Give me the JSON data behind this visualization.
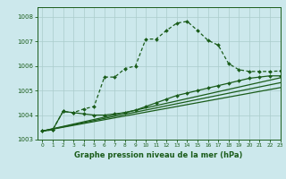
{
  "background_color": "#cce8ec",
  "grid_color": "#aacccc",
  "line_color": "#1a5c1a",
  "xlabel": "Graphe pression niveau de la mer (hPa)",
  "ylim": [
    1003,
    1008.4
  ],
  "xlim": [
    -0.5,
    23
  ],
  "yticks": [
    1003,
    1004,
    1005,
    1006,
    1007,
    1008
  ],
  "xticks": [
    0,
    1,
    2,
    3,
    4,
    5,
    6,
    7,
    8,
    9,
    10,
    11,
    12,
    13,
    14,
    15,
    16,
    17,
    18,
    19,
    20,
    21,
    22,
    23
  ],
  "line1_x": [
    0,
    1,
    2,
    3,
    4,
    5,
    6,
    7,
    8,
    9,
    10,
    11,
    12,
    13,
    14,
    15,
    16,
    17,
    18,
    19,
    20,
    21,
    22,
    23
  ],
  "line1_y": [
    1003.35,
    1003.4,
    1004.15,
    1004.1,
    1004.25,
    1004.35,
    1005.55,
    1005.55,
    1005.9,
    1006.0,
    1007.1,
    1007.1,
    1007.45,
    1007.75,
    1007.82,
    1007.45,
    1007.05,
    1006.85,
    1006.1,
    1005.85,
    1005.78,
    1005.78,
    1005.78,
    1005.8
  ],
  "line2_x": [
    0,
    1,
    2,
    3,
    4,
    5,
    6,
    7,
    8,
    9,
    10,
    11,
    12,
    13,
    14,
    15,
    16,
    17,
    18,
    19,
    20,
    21,
    22,
    23
  ],
  "line2_y": [
    1003.35,
    1003.4,
    1004.15,
    1004.1,
    1004.05,
    1004.0,
    1004.0,
    1004.05,
    1004.1,
    1004.2,
    1004.35,
    1004.5,
    1004.65,
    1004.8,
    1004.9,
    1005.0,
    1005.1,
    1005.2,
    1005.3,
    1005.4,
    1005.5,
    1005.55,
    1005.6,
    1005.6
  ],
  "line3_x": [
    0,
    23
  ],
  "line3_y": [
    1003.35,
    1005.52
  ],
  "line4_x": [
    0,
    23
  ],
  "line4_y": [
    1003.35,
    1005.32
  ],
  "line5_x": [
    0,
    23
  ],
  "line5_y": [
    1003.35,
    1005.12
  ],
  "xlabel_fontsize": 6,
  "tick_fontsize": 5,
  "xtick_fontsize": 4.2
}
